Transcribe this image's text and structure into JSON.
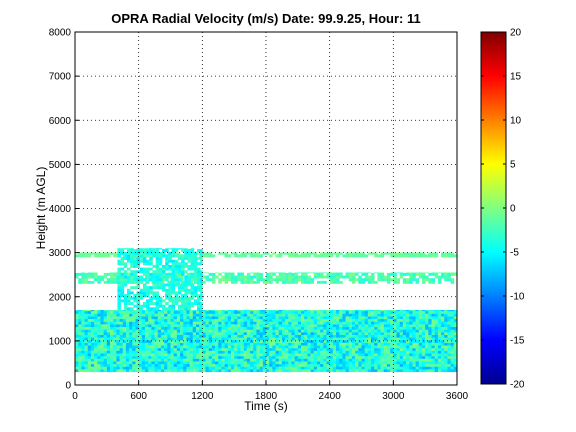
{
  "chart_data": {
    "type": "heatmap",
    "title": "OPRA Radial Velocity (m/s)  Date: 99.9.25, Hour: 11",
    "xlabel": "Time (s)",
    "ylabel": "Height (m AGL)",
    "xlim": [
      0,
      3600
    ],
    "ylim": [
      0,
      8000
    ],
    "x_ticks": [
      "0",
      "600",
      "1200",
      "1800",
      "2400",
      "3000",
      "3600"
    ],
    "y_ticks": [
      "0",
      "1000",
      "2000",
      "3000",
      "4000",
      "5000",
      "6000",
      "7000",
      "8000"
    ],
    "grid": true,
    "colormap": "jet",
    "colorbar": {
      "range": [
        -20,
        20
      ],
      "ticks": [
        "20",
        "15",
        "10",
        "5",
        "0",
        "-5",
        "-10",
        "-15",
        "-20"
      ]
    },
    "regions": [
      {
        "x": [
          0,
          3600
        ],
        "y": [
          300,
          1700
        ],
        "value_range": [
          -8,
          0
        ],
        "description": "dense lower band"
      },
      {
        "x": [
          0,
          3600
        ],
        "y": [
          2300,
          2550
        ],
        "value_range": [
          -4,
          0
        ],
        "description": "patchy band"
      },
      {
        "x": [
          0,
          3600
        ],
        "y": [
          2900,
          3000
        ],
        "value_range": [
          -2,
          0
        ],
        "description": "thin top layer"
      },
      {
        "x": [
          400,
          1200
        ],
        "y": [
          1700,
          3100
        ],
        "value_range": [
          -6,
          -2
        ],
        "description": "elevated plume"
      }
    ]
  }
}
